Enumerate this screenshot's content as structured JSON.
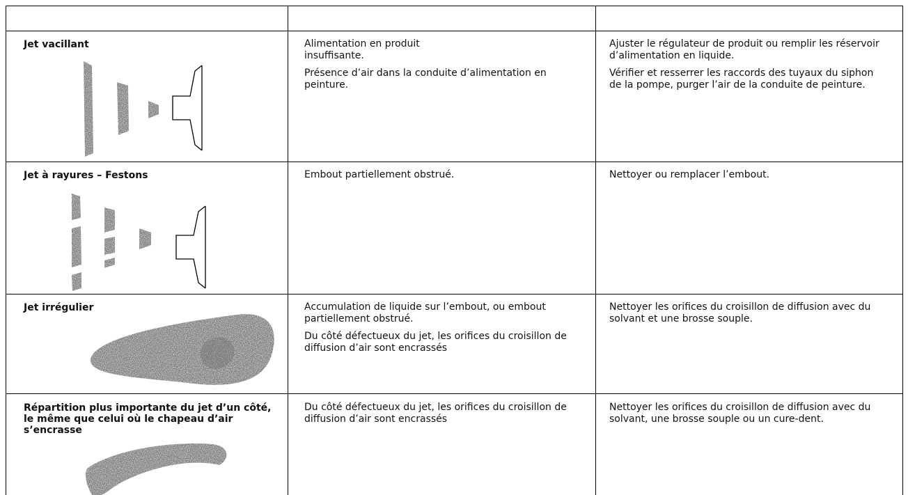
{
  "table": {
    "rows": [
      {
        "problem": "Jet vacillant",
        "causes": [
          "Alimentation en produit insuffisante.",
          "Présence d’air dans la conduite d’alimentation en peinture."
        ],
        "solutions": [
          "Ajuster le régulateur de produit ou remplir les réservoir d’alimentation en liquide.",
          "Vérifier et resserrer les raccords des tuyaux du siphon de la pompe, purger l’air de la conduite de peinture."
        ]
      },
      {
        "problem": "Jet à rayures – Festons",
        "causes": [
          "Embout partiellement obstrué."
        ],
        "solutions": [
          "Nettoyer ou remplacer l’embout."
        ]
      },
      {
        "problem": "Jet irrégulier",
        "causes": [
          "Accumulation de liquide sur l’embout, ou embout partiellement obstrué.",
          "Du côté défectueux du jet, les orifices du croisillon de diffusion d’air sont encrassés"
        ],
        "solutions": [
          "Nettoyer les orifices du croisillon de diffusion avec du solvant et une brosse souple."
        ]
      },
      {
        "problem": "Répartition plus importante du jet d’un côté, le même que celui où le chapeau d’air s’encrasse",
        "causes": [
          "Du côté défectueux du jet, les orifices du croisillon de diffusion d’air sont encrassés"
        ],
        "solutions": [
          "Nettoyer les orifices du croisillon de diffusion avec du solvant, une brosse souple ou un cure-dent."
        ]
      }
    ]
  }
}
